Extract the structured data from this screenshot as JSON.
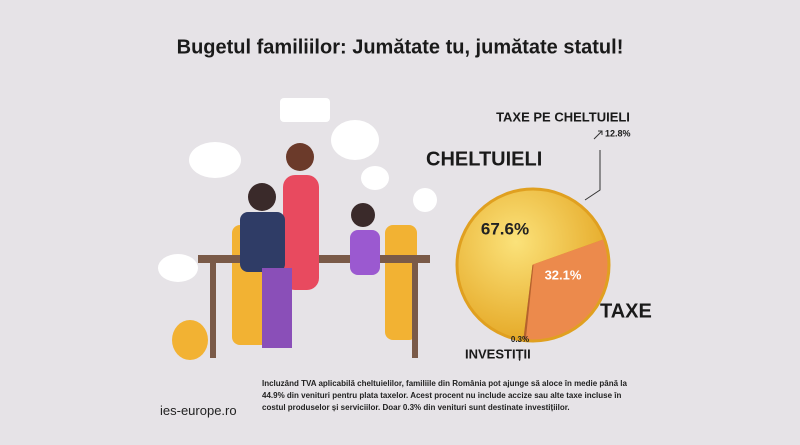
{
  "chart_data": {
    "type": "pie",
    "title": "Bugetul familiilor: Jumătate tu, jumătate statul!",
    "categories": [
      "CHELTUIELI",
      "TAXE",
      "INVESTIȚII"
    ],
    "values": [
      67.6,
      32.1,
      0.3
    ],
    "value_labels": [
      "67.6%",
      "32.1%",
      "0.3%"
    ],
    "colors": [
      "#f2c23a",
      "#ec8a4c",
      "#b5622e"
    ],
    "annotation": {
      "text": "TAXE PE CHELTUIELI",
      "label": "12.8%"
    }
  },
  "footnote": "Incluzând TVA aplicabilă cheltuielilor, familiile din România pot ajunge să aloce în medie până la 44.9% din venituri pentru plata taxelor. Acest procent nu include accize sau alte taxe incluse în costul produselor și serviciilor. Doar 0.3% din venituri sunt destinate investițiilor.",
  "website": "ies-europe.ro"
}
